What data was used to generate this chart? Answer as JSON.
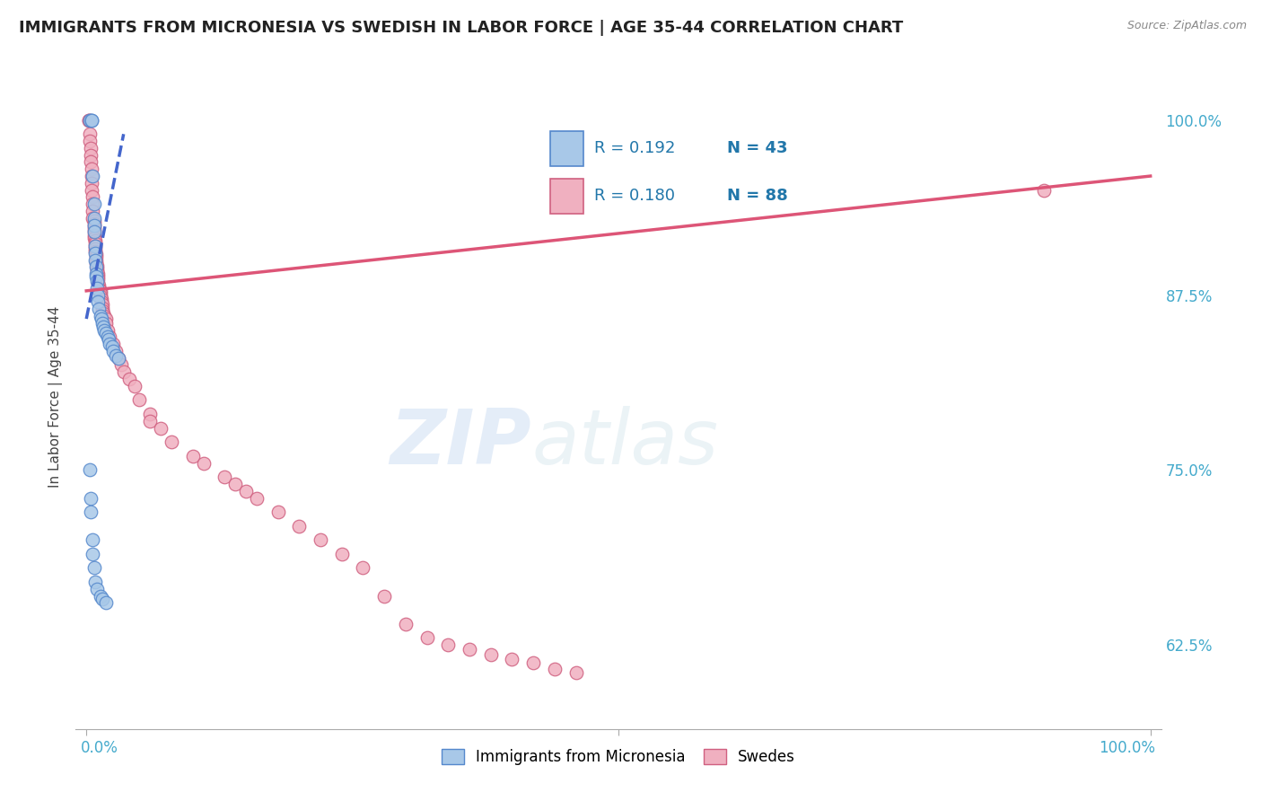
{
  "title": "IMMIGRANTS FROM MICRONESIA VS SWEDISH IN LABOR FORCE | AGE 35-44 CORRELATION CHART",
  "source": "Source: ZipAtlas.com",
  "ylabel": "In Labor Force | Age 35-44",
  "ytick_labels": [
    "62.5%",
    "75.0%",
    "87.5%",
    "100.0%"
  ],
  "ytick_values": [
    0.625,
    0.75,
    0.875,
    1.0
  ],
  "xlim": [
    0.0,
    1.0
  ],
  "ylim": [
    0.565,
    1.04
  ],
  "color_micronesia_fill": "#a8c8e8",
  "color_micronesia_edge": "#5588cc",
  "color_swedes_fill": "#f0b0c0",
  "color_swedes_edge": "#d06080",
  "color_line_micronesia": "#4466cc",
  "color_line_swedes": "#dd5577",
  "color_text_blue": "#44aacc",
  "color_legend_text": "#2277aa",
  "watermark_zip": "ZIP",
  "watermark_atlas": "atlas",
  "micronesia_x": [
    0.003,
    0.005,
    0.005,
    0.006,
    0.007,
    0.007,
    0.007,
    0.007,
    0.008,
    0.008,
    0.008,
    0.009,
    0.009,
    0.009,
    0.01,
    0.01,
    0.011,
    0.011,
    0.012,
    0.013,
    0.014,
    0.015,
    0.016,
    0.017,
    0.018,
    0.02,
    0.021,
    0.022,
    0.024,
    0.025,
    0.028,
    0.03,
    0.003,
    0.004,
    0.004,
    0.006,
    0.006,
    0.007,
    0.008,
    0.01,
    0.013,
    0.015,
    0.018
  ],
  "micronesia_y": [
    1.0,
    1.0,
    1.0,
    0.96,
    0.94,
    0.93,
    0.925,
    0.92,
    0.91,
    0.905,
    0.9,
    0.895,
    0.89,
    0.888,
    0.885,
    0.88,
    0.875,
    0.87,
    0.865,
    0.86,
    0.858,
    0.855,
    0.852,
    0.85,
    0.848,
    0.845,
    0.843,
    0.84,
    0.838,
    0.835,
    0.832,
    0.83,
    0.75,
    0.73,
    0.72,
    0.7,
    0.69,
    0.68,
    0.67,
    0.665,
    0.66,
    0.658,
    0.655
  ],
  "swedes_x": [
    0.002,
    0.002,
    0.003,
    0.003,
    0.004,
    0.004,
    0.004,
    0.005,
    0.005,
    0.005,
    0.005,
    0.006,
    0.006,
    0.006,
    0.006,
    0.007,
    0.007,
    0.007,
    0.007,
    0.007,
    0.007,
    0.007,
    0.008,
    0.008,
    0.008,
    0.008,
    0.008,
    0.009,
    0.009,
    0.009,
    0.009,
    0.01,
    0.01,
    0.01,
    0.011,
    0.011,
    0.011,
    0.011,
    0.012,
    0.012,
    0.013,
    0.013,
    0.013,
    0.014,
    0.014,
    0.015,
    0.015,
    0.015,
    0.016,
    0.017,
    0.018,
    0.018,
    0.02,
    0.022,
    0.025,
    0.028,
    0.03,
    0.033,
    0.035,
    0.04,
    0.045,
    0.05,
    0.06,
    0.06,
    0.07,
    0.08,
    0.1,
    0.11,
    0.13,
    0.14,
    0.15,
    0.16,
    0.18,
    0.2,
    0.22,
    0.24,
    0.26,
    0.28,
    0.3,
    0.32,
    0.34,
    0.36,
    0.38,
    0.4,
    0.42,
    0.44,
    0.46,
    0.9
  ],
  "swedes_y": [
    1.0,
    1.0,
    0.99,
    0.985,
    0.98,
    0.975,
    0.97,
    0.965,
    0.96,
    0.955,
    0.95,
    0.945,
    0.94,
    0.935,
    0.93,
    0.928,
    0.926,
    0.924,
    0.922,
    0.92,
    0.918,
    0.916,
    0.914,
    0.912,
    0.91,
    0.908,
    0.906,
    0.904,
    0.902,
    0.9,
    0.898,
    0.896,
    0.894,
    0.892,
    0.89,
    0.888,
    0.886,
    0.884,
    0.882,
    0.88,
    0.878,
    0.876,
    0.874,
    0.872,
    0.87,
    0.868,
    0.866,
    0.864,
    0.862,
    0.86,
    0.858,
    0.855,
    0.85,
    0.845,
    0.84,
    0.835,
    0.83,
    0.825,
    0.82,
    0.815,
    0.81,
    0.8,
    0.79,
    0.785,
    0.78,
    0.77,
    0.76,
    0.755,
    0.745,
    0.74,
    0.735,
    0.73,
    0.72,
    0.71,
    0.7,
    0.69,
    0.68,
    0.66,
    0.64,
    0.63,
    0.625,
    0.622,
    0.618,
    0.615,
    0.612,
    0.608,
    0.605,
    0.95
  ],
  "mic_line_x": [
    0.0,
    0.035
  ],
  "mic_line_y_start": 0.858,
  "mic_line_y_end": 0.99,
  "swe_line_x": [
    0.0,
    1.0
  ],
  "swe_line_y_start": 0.878,
  "swe_line_y_end": 0.96
}
